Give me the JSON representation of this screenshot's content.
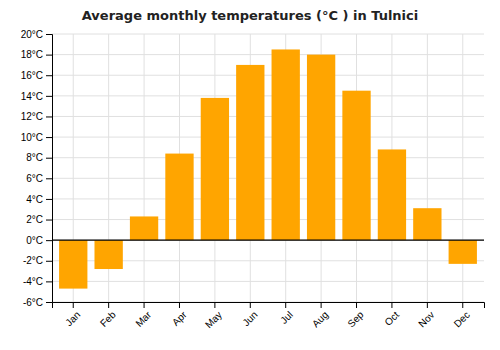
{
  "chart_data": {
    "type": "bar",
    "title": "Average monthly temperatures (°C ) in Tulnici",
    "categories": [
      "Jan",
      "Feb",
      "Mar",
      "Apr",
      "May",
      "Jun",
      "Jul",
      "Aug",
      "Sep",
      "Oct",
      "Nov",
      "Dec"
    ],
    "values": [
      -4.7,
      -2.8,
      2.3,
      8.4,
      13.8,
      17.0,
      18.5,
      18.0,
      14.5,
      8.8,
      3.1,
      -2.3
    ],
    "color": "#FFA500",
    "ylim": [
      -6,
      20
    ],
    "yticks": [
      {
        "value": -6,
        "label": "-6°C"
      },
      {
        "value": -4,
        "label": "-4°C"
      },
      {
        "value": -2,
        "label": "-2°C"
      },
      {
        "value": 0,
        "label": "0°C"
      },
      {
        "value": 2,
        "label": "2°C"
      },
      {
        "value": 4,
        "label": "4°C"
      },
      {
        "value": 6,
        "label": "6°C"
      },
      {
        "value": 8,
        "label": "8°C"
      },
      {
        "value": 10,
        "label": "10°C"
      },
      {
        "value": 12,
        "label": "12°C"
      },
      {
        "value": 14,
        "label": "14°C"
      },
      {
        "value": 16,
        "label": "16°C"
      },
      {
        "value": 18,
        "label": "18°C"
      },
      {
        "value": 20,
        "label": "20°C"
      }
    ],
    "grid": true
  }
}
